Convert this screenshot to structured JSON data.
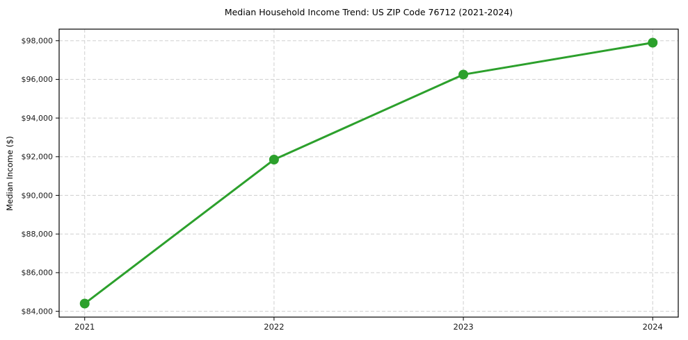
{
  "chart_data": {
    "type": "line",
    "title": "Median Household Income Trend: US ZIP Code 76712 (2021-2024)",
    "xlabel": "",
    "ylabel": "Median Income ($)",
    "series_name": "Median Household Income",
    "x": [
      2021,
      2022,
      2023,
      2024
    ],
    "values": [
      84400,
      91850,
      96250,
      97900
    ],
    "xticks": [
      2021,
      2022,
      2023,
      2024
    ],
    "xtick_labels": [
      "2021",
      "2022",
      "2023",
      "2024"
    ],
    "yticks": [
      84000,
      86000,
      88000,
      90000,
      92000,
      94000,
      96000,
      98000
    ],
    "ytick_labels": [
      "$84,000",
      "$86,000",
      "$88,000",
      "$90,000",
      "$92,000",
      "$94,000",
      "$96,000",
      "$98,000"
    ],
    "xlim": [
      2020.865,
      2024.135
    ],
    "ylim": [
      83700,
      98600
    ],
    "grid": true,
    "grid_style": "dashed",
    "legend": "none",
    "colors": {
      "line": "#2ca02c",
      "marker": "#2ca02c",
      "grid": "#cfcfcf",
      "spine": "#000000",
      "tick_label": "#1a1a1a",
      "background": "#ffffff"
    }
  }
}
